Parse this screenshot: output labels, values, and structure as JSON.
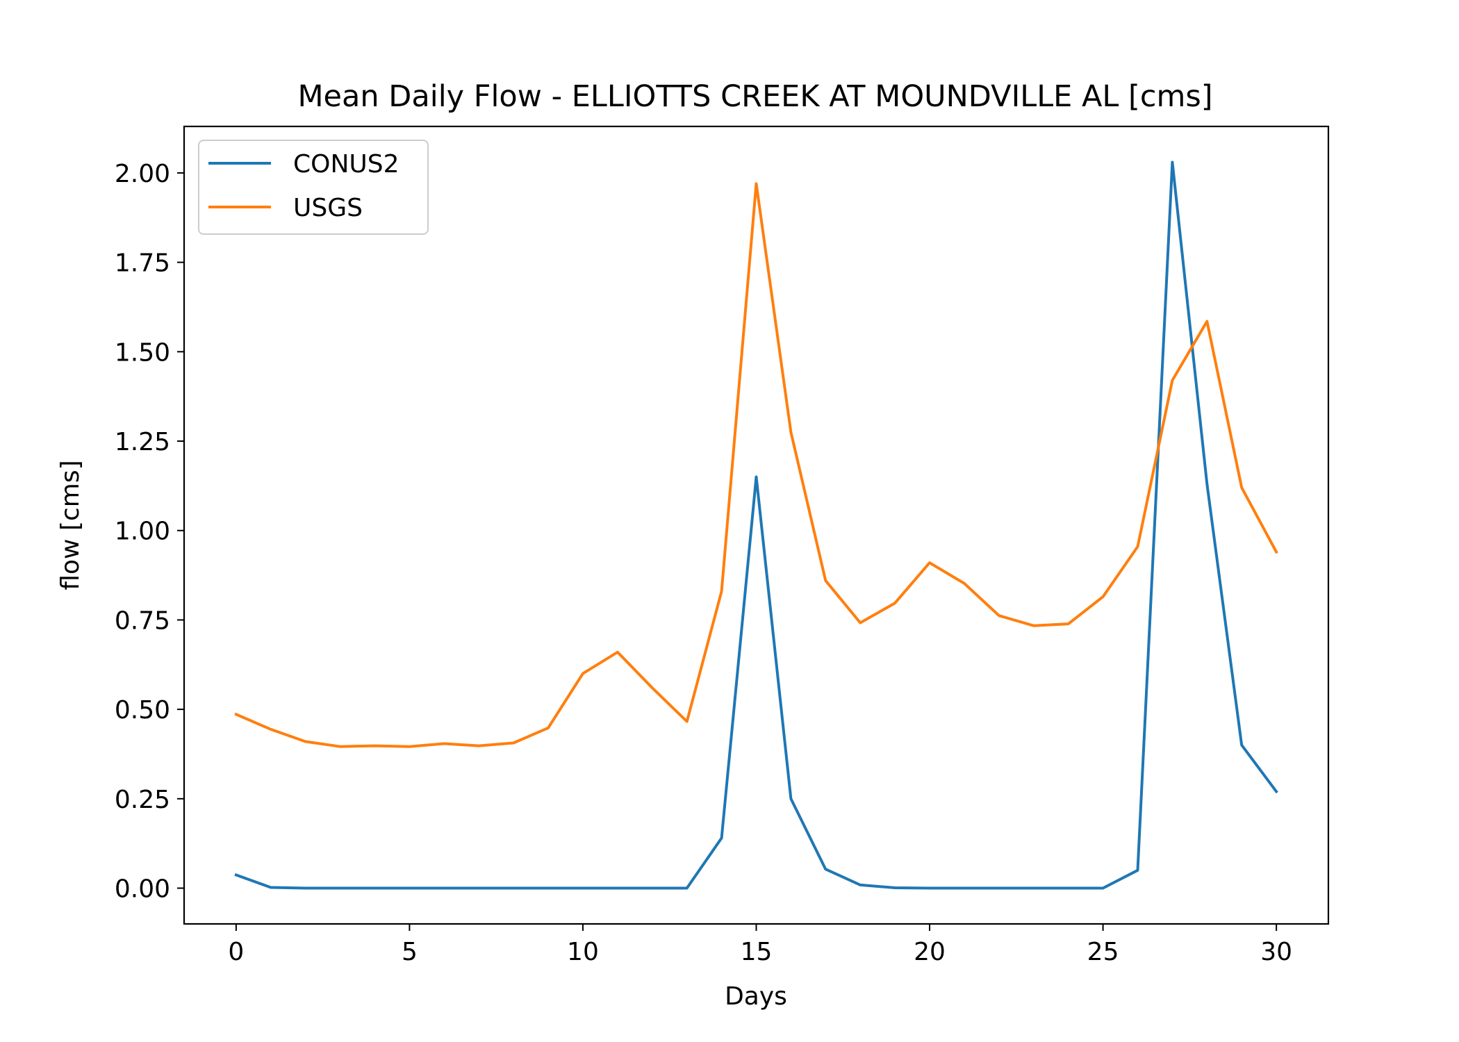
{
  "chart_data": {
    "type": "line",
    "title": "Mean Daily Flow - ELLIOTTS CREEK AT MOUNDVILLE AL [cms]",
    "xlabel": "Days",
    "ylabel": "flow [cms]",
    "xlim": [
      -1.5,
      31.5
    ],
    "ylim": [
      -0.1,
      2.13
    ],
    "xticks": [
      0,
      5,
      10,
      15,
      20,
      25,
      30
    ],
    "yticks": [
      0.0,
      0.25,
      0.5,
      0.75,
      1.0,
      1.25,
      1.5,
      1.75,
      2.0
    ],
    "ytick_labels": [
      "0.00",
      "0.25",
      "0.50",
      "0.75",
      "1.00",
      "1.25",
      "1.50",
      "1.75",
      "2.00"
    ],
    "grid": false,
    "legend_position": "top-left",
    "x": [
      0,
      1,
      2,
      3,
      4,
      5,
      6,
      7,
      8,
      9,
      10,
      11,
      12,
      13,
      14,
      15,
      16,
      17,
      18,
      19,
      20,
      21,
      22,
      23,
      24,
      25,
      26,
      27,
      28,
      29,
      30
    ],
    "series": [
      {
        "name": "CONUS2",
        "color": "#1f77b4",
        "values": [
          0.037,
          0.002,
          0.0,
          0.0,
          0.0,
          0.0,
          0.0,
          0.0,
          0.0,
          0.0,
          0.0,
          0.0,
          0.0,
          0.0,
          0.14,
          1.15,
          0.25,
          0.053,
          0.009,
          0.001,
          0.0,
          0.0,
          0.0,
          0.0,
          0.0,
          0.0,
          0.05,
          2.03,
          1.13,
          0.4,
          0.27
        ]
      },
      {
        "name": "USGS",
        "color": "#ff7f0e",
        "values": [
          0.486,
          0.444,
          0.41,
          0.396,
          0.398,
          0.396,
          0.404,
          0.398,
          0.406,
          0.448,
          0.6,
          0.66,
          0.56,
          0.466,
          0.83,
          1.97,
          1.275,
          0.86,
          0.742,
          0.797,
          0.91,
          0.852,
          0.762,
          0.734,
          0.739,
          0.815,
          0.955,
          1.42,
          1.585,
          1.12,
          0.94
        ]
      }
    ]
  }
}
